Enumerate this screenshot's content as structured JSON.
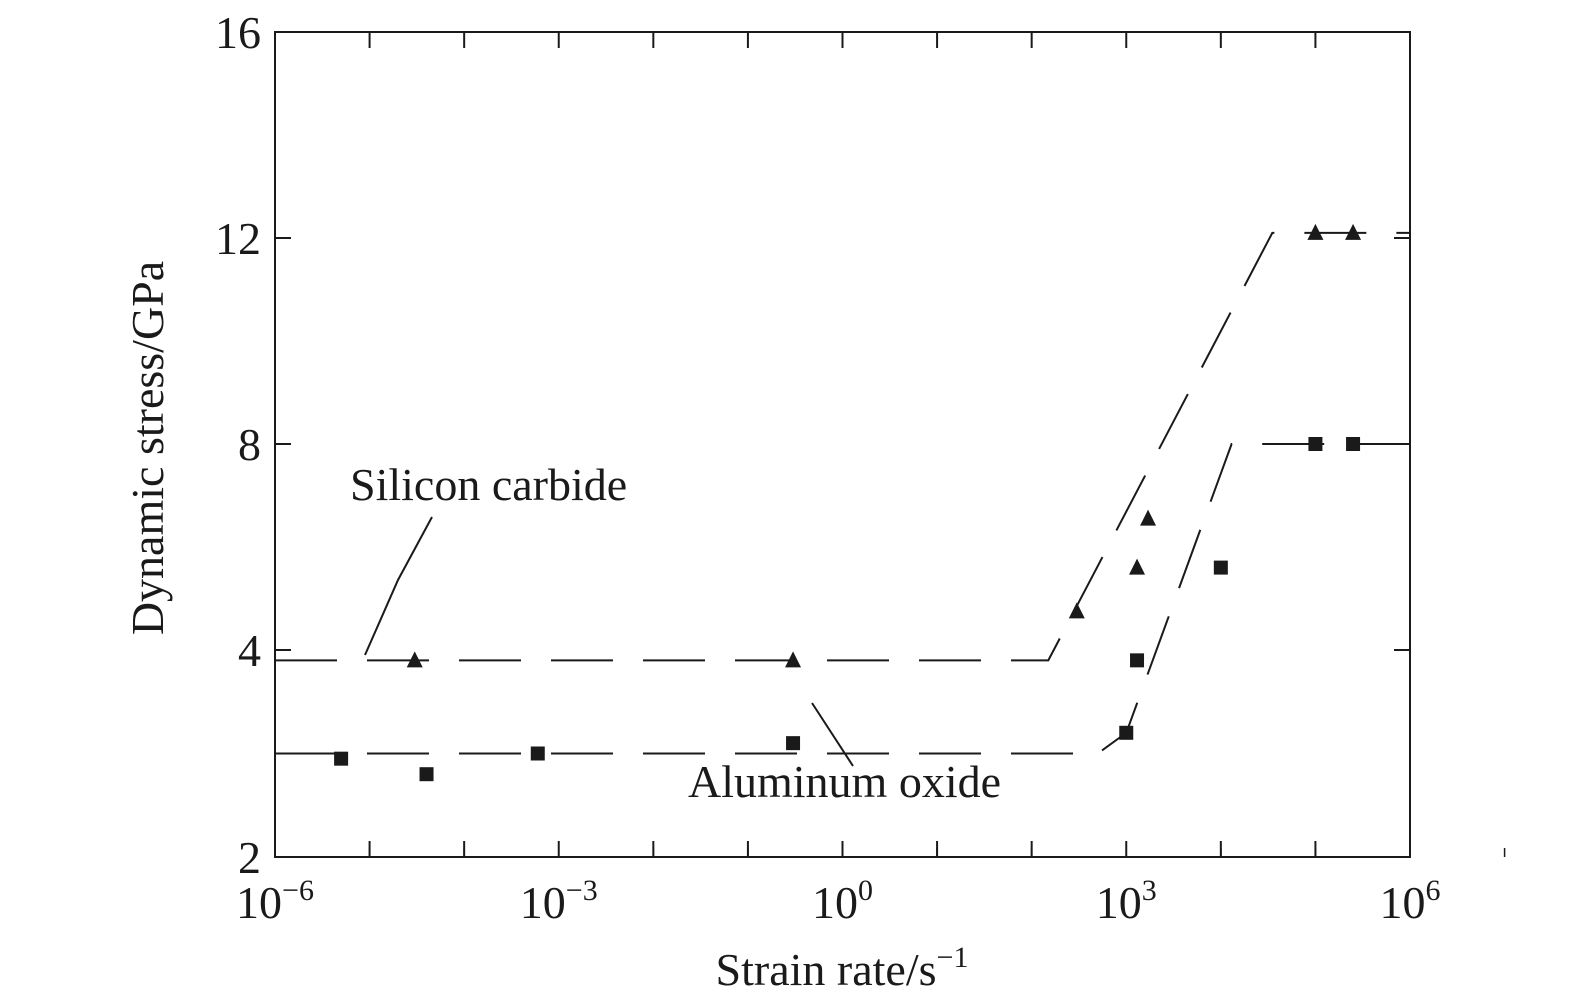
{
  "chart_data": {
    "type": "scatter",
    "title": "",
    "xlabel": "Strain rate/s",
    "xlabel_sup": "−1",
    "ylabel": "Dynamic stress/GPa",
    "x_scale": "log",
    "xlim": [
      1e-06,
      1000000.0
    ],
    "y_scale": "piecewise",
    "ylim": [
      2,
      16
    ],
    "x_ticks": [
      {
        "value": 1e-06,
        "base": "10",
        "exp": "−6"
      },
      {
        "value": 0.001,
        "base": "10",
        "exp": "−3"
      },
      {
        "value": 1,
        "base": "10",
        "exp": "0"
      },
      {
        "value": 1000.0,
        "base": "10",
        "exp": "3"
      },
      {
        "value": 1000000.0,
        "base": "10",
        "exp": "6"
      }
    ],
    "y_ticks": [
      {
        "value": 2,
        "label": "2"
      },
      {
        "value": 4,
        "label": "4"
      },
      {
        "value": 8,
        "label": "8"
      },
      {
        "value": 12,
        "label": "12"
      },
      {
        "value": 16,
        "label": "16"
      }
    ],
    "grid": false,
    "legend": "none",
    "annotations": [
      {
        "text": "Silicon carbide",
        "series": "Silicon carbide"
      },
      {
        "text": "Aluminum oxide",
        "series": "Aluminum oxide"
      }
    ],
    "series": [
      {
        "name": "Silicon carbide",
        "marker": "triangle",
        "color": "#1a1a1a",
        "points": [
          {
            "x": 3e-05,
            "y": 3.9
          },
          {
            "x": 0.3,
            "y": 3.9
          },
          {
            "x": 300,
            "y": 4.75
          },
          {
            "x": 1300,
            "y": 5.6
          },
          {
            "x": 1700,
            "y": 6.55
          },
          {
            "x": 100000,
            "y": 12.1
          },
          {
            "x": 250000,
            "y": 12.1
          }
        ],
        "fit_line": [
          {
            "x": 1e-06,
            "y": 3.9
          },
          {
            "x": 150,
            "y": 3.9
          },
          {
            "x": 35000,
            "y": 12.1
          },
          {
            "x": 1000000.0,
            "y": 12.1
          }
        ]
      },
      {
        "name": "Aluminum oxide",
        "marker": "square",
        "color": "#1a1a1a",
        "points": [
          {
            "x": 5e-06,
            "y": 2.95
          },
          {
            "x": 4e-05,
            "y": 2.8
          },
          {
            "x": 0.0006,
            "y": 3.0
          },
          {
            "x": 0.3,
            "y": 3.1
          },
          {
            "x": 1000,
            "y": 3.2
          },
          {
            "x": 1300,
            "y": 3.9
          },
          {
            "x": 10000,
            "y": 5.6
          },
          {
            "x": 100000,
            "y": 8.0
          },
          {
            "x": 250000,
            "y": 8.0
          }
        ],
        "fit_line": [
          {
            "x": 1e-06,
            "y": 3.0
          },
          {
            "x": 500,
            "y": 3.0
          },
          {
            "x": 1000,
            "y": 3.2
          },
          {
            "x": 13000,
            "y": 8.0
          },
          {
            "x": 1000000.0,
            "y": 8.0
          }
        ]
      }
    ]
  }
}
